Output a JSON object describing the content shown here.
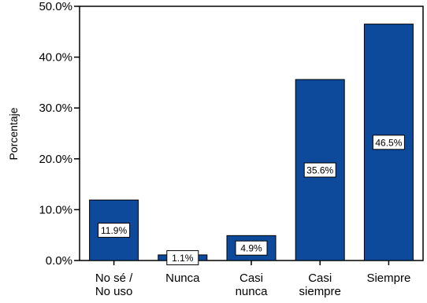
{
  "chart_data": {
    "type": "bar",
    "categories": [
      [
        "No sé /",
        "No uso"
      ],
      [
        "Nunca"
      ],
      [
        "Casi",
        "nunca"
      ],
      [
        "Casi",
        "siempre"
      ],
      [
        "Siempre"
      ]
    ],
    "values": [
      11.9,
      1.1,
      4.9,
      35.6,
      46.5
    ],
    "data_labels": [
      "11.9%",
      "1.1%",
      "4.9%",
      "35.6%",
      "46.5%"
    ],
    "ylabel": "Porcentaje",
    "xlabel": "",
    "ylim": [
      0,
      50
    ],
    "yticks": [
      0,
      10,
      20,
      30,
      40,
      50
    ],
    "ytick_labels": [
      "0.0%",
      "10.0%",
      "20.0%",
      "30.0%",
      "40.0%",
      "50.0%"
    ],
    "bar_color": "#0d4a9b",
    "grid": false,
    "legend": false
  }
}
